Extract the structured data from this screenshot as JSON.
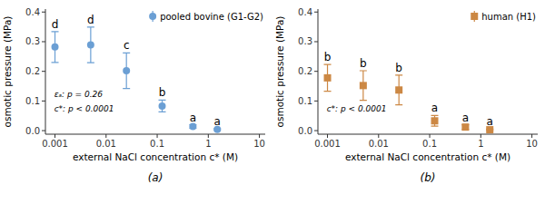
{
  "chart_data": [
    {
      "type": "scatter",
      "title": "(a)",
      "x_label": "external NaCl concentration c* (M)",
      "y_label": "osmotic pressure (MPa)",
      "x": [
        0.001,
        0.005,
        0.025,
        0.125,
        0.5,
        1.5
      ],
      "series": [
        {
          "name": "pooled bovine (G1-G2)",
          "color": "#6b9fd4",
          "marker": "circle",
          "values": [
            0.282,
            0.289,
            0.202,
            0.083,
            0.014,
            0.004
          ],
          "errors": [
            0.052,
            0.06,
            0.06,
            0.02,
            0.006,
            0.003
          ],
          "letters": [
            "d",
            "d",
            "c",
            "b",
            "a",
            "a"
          ]
        }
      ],
      "annotations": [
        "εₐ: p = 0.26",
        "c*: p < 0.0001"
      ],
      "xlim": [
        0.00065,
        13
      ],
      "ylim": [
        -0.012,
        0.41
      ],
      "xticks": [
        0.001,
        0.01,
        0.1,
        1,
        10
      ],
      "yticks": [
        {
          "value": 0.0,
          "label": "0.0"
        },
        0.1,
        0.2,
        0.3,
        0.4
      ],
      "log": "x",
      "legend": "upper right"
    },
    {
      "type": "scatter",
      "title": "(b)",
      "x_label": "external NaCl concentration c* (M)",
      "y_label": "osmotic pressure (MPa)",
      "x": [
        0.001,
        0.005,
        0.025,
        0.125,
        0.5,
        1.5
      ],
      "series": [
        {
          "name": "human (H1)",
          "color": "#cc8844",
          "marker": "square",
          "values": [
            0.178,
            0.152,
            0.137,
            0.033,
            0.012,
            0.003
          ],
          "errors": [
            0.045,
            0.05,
            0.05,
            0.018,
            0.008,
            0.002
          ],
          "letters": [
            "b",
            "b",
            "b",
            "a",
            "a",
            "a"
          ]
        }
      ],
      "annotations": [
        "c*: p < 0.0001"
      ],
      "xlim": [
        0.00065,
        13
      ],
      "ylim": [
        -0.012,
        0.41
      ],
      "xticks": [
        0.001,
        0.01,
        0.1,
        1,
        10
      ],
      "yticks": [
        {
          "value": 0.0,
          "label": "0.0"
        },
        0.1,
        0.2,
        0.3,
        0.4
      ],
      "log": "x",
      "legend": "upper right"
    }
  ]
}
